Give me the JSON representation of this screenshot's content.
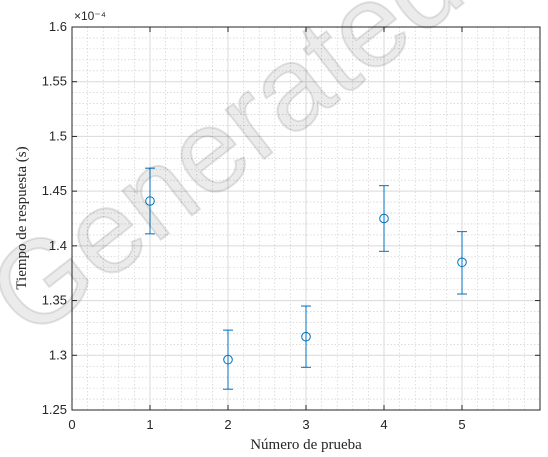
{
  "chart_data": {
    "type": "scatter",
    "title": "",
    "xlabel": "Número de prueba",
    "ylabel": "Tiempo de respuesta (s)",
    "y_multiplier_label": "×10⁻⁴",
    "xlim": [
      0,
      6
    ],
    "ylim": [
      1.25,
      1.6
    ],
    "x_ticks": [
      0,
      1,
      2,
      3,
      4,
      5
    ],
    "x_tick_labels": [
      "0",
      "1",
      "2",
      "3",
      "4",
      "5"
    ],
    "y_ticks": [
      1.25,
      1.3,
      1.35,
      1.4,
      1.45,
      1.5,
      1.55,
      1.6
    ],
    "y_tick_labels": [
      "1.25",
      "1.3",
      "1.35",
      "1.4",
      "1.45",
      "1.5",
      "1.55",
      "1.6"
    ],
    "grid": true,
    "minor_grid": true,
    "marker": "circle",
    "error_bars": true,
    "series": [
      {
        "x": [
          1,
          2,
          3,
          4,
          5
        ],
        "y": [
          1.441,
          1.296,
          1.317,
          1.425,
          1.385
        ],
        "y_low": [
          1.411,
          1.269,
          1.289,
          1.395,
          1.356
        ],
        "y_high": [
          1.471,
          1.323,
          1.345,
          1.455,
          1.413
        ],
        "color": "#0072BD"
      }
    ]
  },
  "watermark": "Generated"
}
